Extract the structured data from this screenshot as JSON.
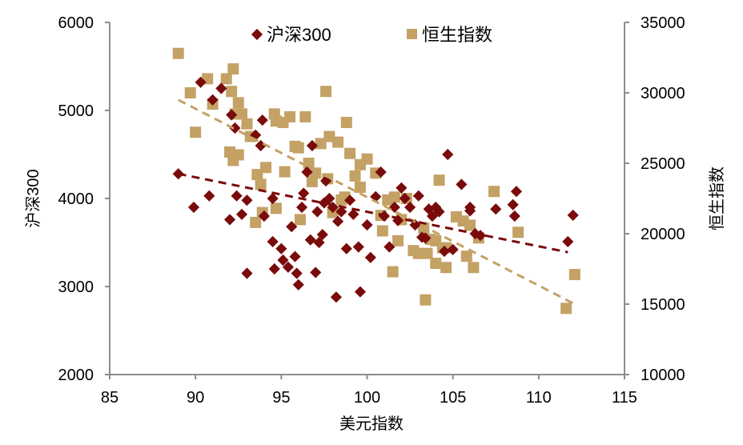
{
  "chart_data": {
    "type": "scatter",
    "title": "",
    "xlabel": "美元指数",
    "ylabel": "沪深300",
    "y2label": "恒生指数",
    "xlim": [
      85,
      115
    ],
    "ylim": [
      2000,
      6000
    ],
    "y2lim": [
      10000,
      35000
    ],
    "xticks": [
      85,
      90,
      95,
      100,
      105,
      110,
      115
    ],
    "yticks": [
      2000,
      3000,
      4000,
      5000,
      6000
    ],
    "y2ticks": [
      10000,
      15000,
      20000,
      25000,
      30000,
      35000
    ],
    "grid": false,
    "legend_position": "top",
    "series": [
      {
        "name": "沪深300",
        "axis": "left",
        "marker": "diamond",
        "color": "#7a0b0b",
        "trendline": {
          "x": [
            89,
            111.7
          ],
          "y": [
            4280,
            3390
          ],
          "style": "dashed"
        },
        "points": [
          [
            89,
            4280
          ],
          [
            89.9,
            3900
          ],
          [
            90.3,
            5320
          ],
          [
            90.8,
            4030
          ],
          [
            91.5,
            5250
          ],
          [
            91,
            5120
          ],
          [
            92,
            3760
          ],
          [
            92.4,
            4030
          ],
          [
            92.7,
            3820
          ],
          [
            93,
            3980
          ],
          [
            93,
            3150
          ],
          [
            92.1,
            4950
          ],
          [
            92.3,
            4800
          ],
          [
            93.5,
            4720
          ],
          [
            93.8,
            4600
          ],
          [
            93.9,
            4890
          ],
          [
            94,
            3800
          ],
          [
            94.5,
            3510
          ],
          [
            94.6,
            3200
          ],
          [
            94.5,
            4000
          ],
          [
            95,
            3430
          ],
          [
            95.1,
            3300
          ],
          [
            95.4,
            3220
          ],
          [
            95.6,
            3680
          ],
          [
            95.8,
            3340
          ],
          [
            95.9,
            3150
          ],
          [
            96,
            3020
          ],
          [
            96.2,
            3900
          ],
          [
            96.3,
            4060
          ],
          [
            96.5,
            4300
          ],
          [
            96.8,
            4600
          ],
          [
            97,
            3160
          ],
          [
            97.1,
            3850
          ],
          [
            97.2,
            3500
          ],
          [
            97.5,
            3950
          ],
          [
            97.6,
            4200
          ],
          [
            97.8,
            4000
          ],
          [
            98,
            3900
          ],
          [
            98.2,
            2880
          ],
          [
            98.5,
            3850
          ],
          [
            98.8,
            3430
          ],
          [
            99,
            3980
          ],
          [
            99.2,
            3820
          ],
          [
            99.5,
            3450
          ],
          [
            99.6,
            2940
          ],
          [
            100,
            3700
          ],
          [
            100.5,
            4020
          ],
          [
            100.8,
            4300
          ],
          [
            101,
            3800
          ],
          [
            101.3,
            3450
          ],
          [
            101.6,
            3900
          ],
          [
            101.8,
            3750
          ],
          [
            102,
            4120
          ],
          [
            102.2,
            4000
          ],
          [
            102.5,
            3900
          ],
          [
            102.8,
            3700
          ],
          [
            103,
            4030
          ],
          [
            103.2,
            3560
          ],
          [
            103.4,
            3550
          ],
          [
            103.6,
            3880
          ],
          [
            103.8,
            3800
          ],
          [
            104,
            3900
          ],
          [
            104.2,
            3850
          ],
          [
            104.5,
            3400
          ],
          [
            104.7,
            4500
          ],
          [
            105,
            3420
          ],
          [
            105.5,
            4160
          ],
          [
            106,
            3860
          ],
          [
            106,
            3900
          ],
          [
            106.3,
            3600
          ],
          [
            106.6,
            3580
          ],
          [
            107.5,
            3880
          ],
          [
            108.5,
            3930
          ],
          [
            108.6,
            3800
          ],
          [
            108.7,
            4080
          ],
          [
            111.7,
            3510
          ],
          [
            112,
            3810
          ],
          [
            100.2,
            3330
          ],
          [
            98.3,
            3740
          ],
          [
            97.4,
            3590
          ],
          [
            96.7,
            3530
          ]
        ]
      },
      {
        "name": "恒生指数",
        "axis": "right",
        "marker": "square",
        "color": "#c4a165",
        "trendline": {
          "x": [
            89,
            112.1
          ],
          "y": [
            29500,
            15000
          ],
          "style": "dashed"
        },
        "points": [
          [
            89,
            32800
          ],
          [
            89.7,
            30000
          ],
          [
            90,
            27200
          ],
          [
            90.7,
            31000
          ],
          [
            91,
            29200
          ],
          [
            91.8,
            31000
          ],
          [
            92.1,
            30100
          ],
          [
            92.3,
            28500
          ],
          [
            92.5,
            29300
          ],
          [
            92.7,
            28500
          ],
          [
            92,
            25800
          ],
          [
            92.2,
            25200
          ],
          [
            92.5,
            25600
          ],
          [
            93,
            27800
          ],
          [
            93.2,
            26900
          ],
          [
            93.6,
            24200
          ],
          [
            93.8,
            23500
          ],
          [
            94.1,
            24700
          ],
          [
            94.6,
            28500
          ],
          [
            94.7,
            28000
          ],
          [
            95.1,
            27900
          ],
          [
            95.5,
            28300
          ],
          [
            95.8,
            26200
          ],
          [
            96,
            26100
          ],
          [
            96.4,
            28300
          ],
          [
            96.8,
            23700
          ],
          [
            97,
            24300
          ],
          [
            97.3,
            26400
          ],
          [
            97.6,
            30100
          ],
          [
            97.8,
            26900
          ],
          [
            98.3,
            26500
          ],
          [
            98.5,
            22400
          ],
          [
            98.8,
            27900
          ],
          [
            99,
            25700
          ],
          [
            99.3,
            24100
          ],
          [
            99.6,
            23300
          ],
          [
            100,
            25300
          ],
          [
            100.5,
            24300
          ],
          [
            100.8,
            21300
          ],
          [
            101.2,
            22400
          ],
          [
            101.6,
            22600
          ],
          [
            102,
            21000
          ],
          [
            102.3,
            22500
          ],
          [
            103,
            18600
          ],
          [
            103.3,
            20400
          ],
          [
            103.5,
            18600
          ],
          [
            103.7,
            19600
          ],
          [
            104,
            19500
          ],
          [
            104.2,
            23800
          ],
          [
            104.4,
            19000
          ],
          [
            104.6,
            17600
          ],
          [
            105.2,
            21200
          ],
          [
            105.6,
            20900
          ],
          [
            106,
            20600
          ],
          [
            106.5,
            19700
          ],
          [
            107.4,
            23000
          ],
          [
            108.8,
            20100
          ],
          [
            111.6,
            14700
          ],
          [
            112.1,
            17100
          ],
          [
            103.4,
            15300
          ],
          [
            102.7,
            18800
          ],
          [
            101.5,
            17300
          ],
          [
            100.9,
            20200
          ],
          [
            99.6,
            24900
          ],
          [
            98.7,
            22600
          ],
          [
            98,
            21500
          ],
          [
            97.7,
            23900
          ],
          [
            96.6,
            25000
          ],
          [
            96.1,
            21000
          ],
          [
            95.2,
            24400
          ],
          [
            94.7,
            21800
          ],
          [
            93.9,
            21500
          ],
          [
            93.5,
            20800
          ],
          [
            92.2,
            31700
          ],
          [
            101.8,
            19500
          ],
          [
            104,
            17900
          ],
          [
            104.6,
            19000
          ],
          [
            105.8,
            18400
          ],
          [
            106.2,
            17600
          ]
        ]
      }
    ],
    "legend": [
      {
        "label": "沪深300",
        "marker": "diamond",
        "color": "#7a0b0b"
      },
      {
        "label": "恒生指数",
        "marker": "square",
        "color": "#c4a165"
      }
    ],
    "axis_color": "#8c8c8c"
  }
}
